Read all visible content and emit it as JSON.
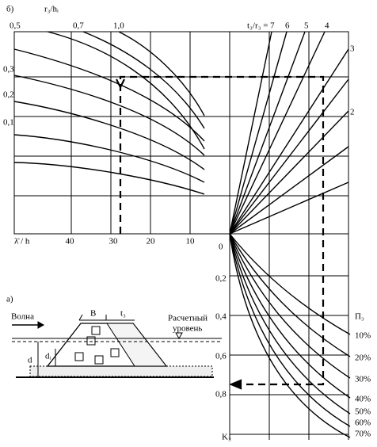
{
  "header": {
    "panel": "б)",
    "y_axis": "r₃/hᵢ"
  },
  "top_ticks": [
    "0,5",
    "0,7",
    "1,0"
  ],
  "fan": {
    "title": "t₃/r₃ = 7",
    "labels": [
      "6",
      "5",
      "4"
    ],
    "side_labels": [
      "3",
      "2"
    ]
  },
  "left_ticks": [
    "0,3",
    "0,2",
    "0,1"
  ],
  "x_axis": {
    "label": "λ̄ / h",
    "ticks": [
      "40",
      "30",
      "20",
      "10"
    ]
  },
  "k_axis": {
    "origin": "0",
    "ticks": [
      "0,2",
      "0,4",
      "0,6",
      "0,8"
    ],
    "label": "K₃"
  },
  "porosity": {
    "title": "П₃",
    "labels": [
      "10%",
      "20%",
      "30%",
      "40%",
      "50%",
      "60%",
      "70%"
    ]
  },
  "inset": {
    "panel": "а)",
    "wave": "Волна",
    "width": "B",
    "thickness": "t₃",
    "level": [
      "Расчетный",
      "уровень"
    ],
    "depth": "d",
    "depth_i": "dᵢ"
  }
}
